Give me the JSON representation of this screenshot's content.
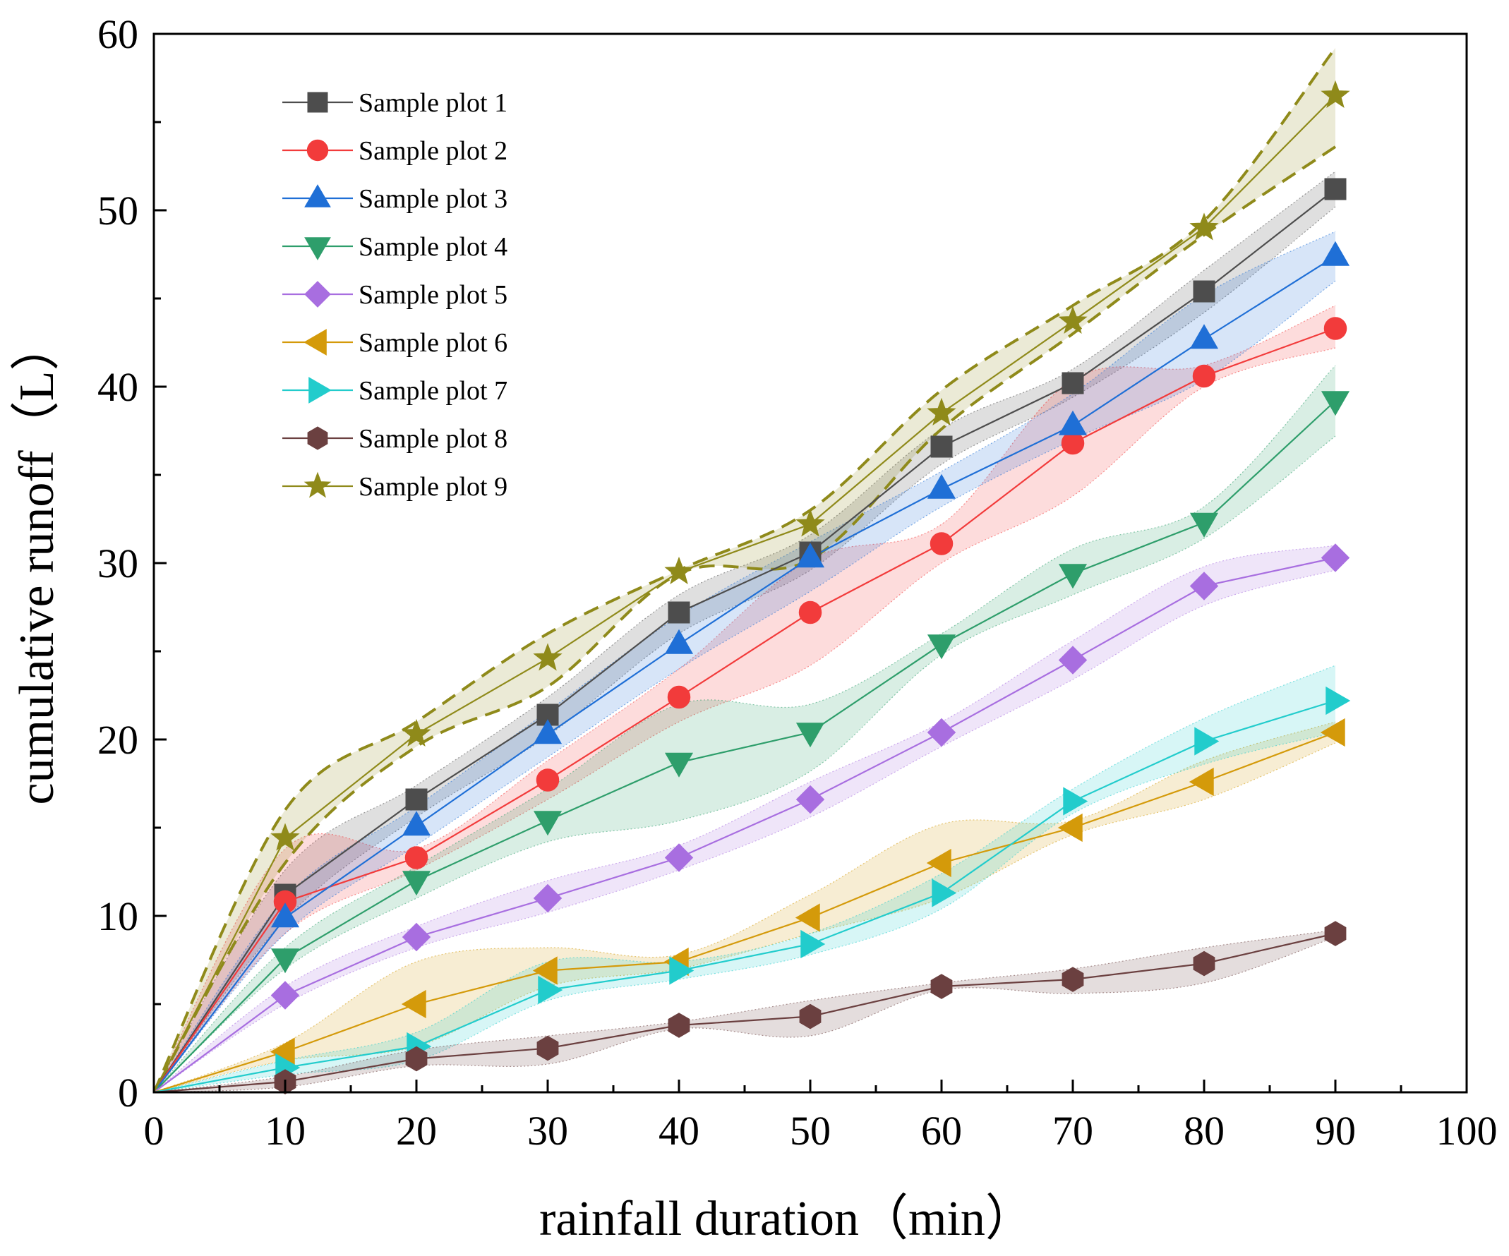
{
  "chart_data": {
    "type": "line",
    "title": "",
    "xlabel": "rainfall duration（min）",
    "ylabel": "cumulative runoff（L）",
    "xlim": [
      0,
      100
    ],
    "ylim": [
      0,
      60
    ],
    "xticks": [
      0,
      10,
      20,
      30,
      40,
      50,
      60,
      70,
      80,
      90,
      100
    ],
    "yticks": [
      0,
      10,
      20,
      30,
      40,
      50,
      60
    ],
    "grid": false,
    "legend_position": "top-left",
    "x": [
      0,
      10,
      20,
      30,
      40,
      50,
      60,
      70,
      80,
      90
    ],
    "series": [
      {
        "name": "Sample plot 1",
        "marker": "square",
        "color": "#4d4d4d",
        "values": [
          0,
          11.2,
          16.6,
          21.4,
          27.2,
          30.6,
          36.6,
          40.2,
          45.4,
          51.2
        ],
        "lower": [
          0,
          9.8,
          15.6,
          20.2,
          26.0,
          29.6,
          35.6,
          39.4,
          44.2,
          50.2
        ],
        "upper": [
          0,
          12.6,
          17.4,
          22.4,
          28.2,
          31.6,
          37.6,
          41.0,
          46.6,
          52.2
        ]
      },
      {
        "name": "Sample plot 2",
        "marker": "circle",
        "color": "#f23b3b",
        "values": [
          0,
          10.8,
          13.3,
          17.7,
          22.4,
          27.2,
          31.1,
          36.8,
          40.6,
          43.3
        ],
        "lower": [
          0,
          9.0,
          12.6,
          16.6,
          21.0,
          24.2,
          30.0,
          33.8,
          40.0,
          42.2
        ],
        "upper": [
          0,
          13.8,
          13.8,
          18.8,
          24.0,
          30.2,
          32.2,
          40.4,
          41.2,
          44.6
        ]
      },
      {
        "name": "Sample plot 3",
        "marker": "triangle-up",
        "color": "#1f6fd6",
        "values": [
          0,
          9.9,
          15.1,
          20.3,
          25.4,
          30.3,
          34.2,
          37.8,
          42.7,
          47.4
        ],
        "lower": [
          0,
          9.0,
          14.0,
          19.0,
          24.0,
          28.4,
          33.2,
          37.0,
          40.4,
          46.0
        ],
        "upper": [
          0,
          11.0,
          16.2,
          21.6,
          27.0,
          31.2,
          35.2,
          39.6,
          45.2,
          48.8
        ]
      },
      {
        "name": "Sample plot 4",
        "marker": "triangle-down",
        "color": "#2e9e6b",
        "values": [
          0,
          7.6,
          12.0,
          15.4,
          18.7,
          20.4,
          25.4,
          29.4,
          32.3,
          39.2
        ],
        "lower": [
          0,
          7.0,
          11.0,
          14.2,
          15.4,
          18.2,
          24.8,
          28.2,
          31.4,
          37.2
        ],
        "upper": [
          0,
          8.2,
          12.8,
          17.2,
          22.0,
          22.0,
          26.0,
          30.8,
          33.2,
          41.2
        ]
      },
      {
        "name": "Sample plot 5",
        "marker": "diamond",
        "color": "#a86ee0",
        "values": [
          0,
          5.5,
          8.8,
          11.0,
          13.3,
          16.6,
          20.4,
          24.5,
          28.7,
          30.3
        ],
        "lower": [
          0,
          5.0,
          8.2,
          10.2,
          12.6,
          15.6,
          19.6,
          23.4,
          27.6,
          29.6
        ],
        "upper": [
          0,
          6.0,
          9.4,
          12.0,
          14.0,
          17.6,
          21.0,
          25.6,
          29.8,
          31.0
        ]
      },
      {
        "name": "Sample plot 6",
        "marker": "triangle-left",
        "color": "#d49a0a",
        "values": [
          0,
          2.3,
          5.0,
          6.9,
          7.4,
          9.9,
          13.0,
          15.0,
          17.6,
          20.4
        ],
        "lower": [
          0,
          1.8,
          2.6,
          6.0,
          7.0,
          9.0,
          11.0,
          14.6,
          16.6,
          19.8
        ],
        "upper": [
          0,
          2.8,
          7.4,
          8.2,
          7.8,
          11.2,
          15.2,
          15.4,
          18.8,
          21.0
        ]
      },
      {
        "name": "Sample plot 7",
        "marker": "triangle-right",
        "color": "#22cccc",
        "values": [
          0,
          1.4,
          2.6,
          5.8,
          6.9,
          8.4,
          11.3,
          16.5,
          19.9,
          22.2
        ],
        "lower": [
          0,
          1.0,
          1.8,
          5.2,
          6.4,
          7.8,
          10.4,
          15.8,
          18.6,
          20.4
        ],
        "upper": [
          0,
          1.8,
          3.4,
          7.4,
          7.4,
          9.0,
          12.4,
          17.2,
          21.2,
          24.2
        ]
      },
      {
        "name": "Sample plot 8",
        "marker": "hexagon",
        "color": "#6b4040",
        "values": [
          0,
          0.6,
          1.9,
          2.5,
          3.8,
          4.3,
          6.0,
          6.4,
          7.3,
          9.0
        ],
        "lower": [
          0,
          0.3,
          1.5,
          1.6,
          3.6,
          3.2,
          5.8,
          5.6,
          6.2,
          8.8
        ],
        "upper": [
          0,
          0.9,
          2.4,
          3.2,
          4.0,
          5.2,
          6.2,
          7.0,
          8.2,
          9.2
        ]
      },
      {
        "name": "Sample plot 9",
        "marker": "star",
        "color": "#8f8a1a",
        "values": [
          0,
          14.4,
          20.3,
          24.6,
          29.5,
          32.2,
          38.5,
          43.7,
          49.0,
          56.5
        ],
        "lower": [
          0,
          13.0,
          19.6,
          23.0,
          29.4,
          30.2,
          37.6,
          43.0,
          48.6,
          53.6
        ],
        "upper": [
          0,
          16.0,
          21.0,
          26.0,
          29.6,
          33.0,
          39.8,
          44.6,
          49.4,
          59.2
        ]
      }
    ]
  }
}
